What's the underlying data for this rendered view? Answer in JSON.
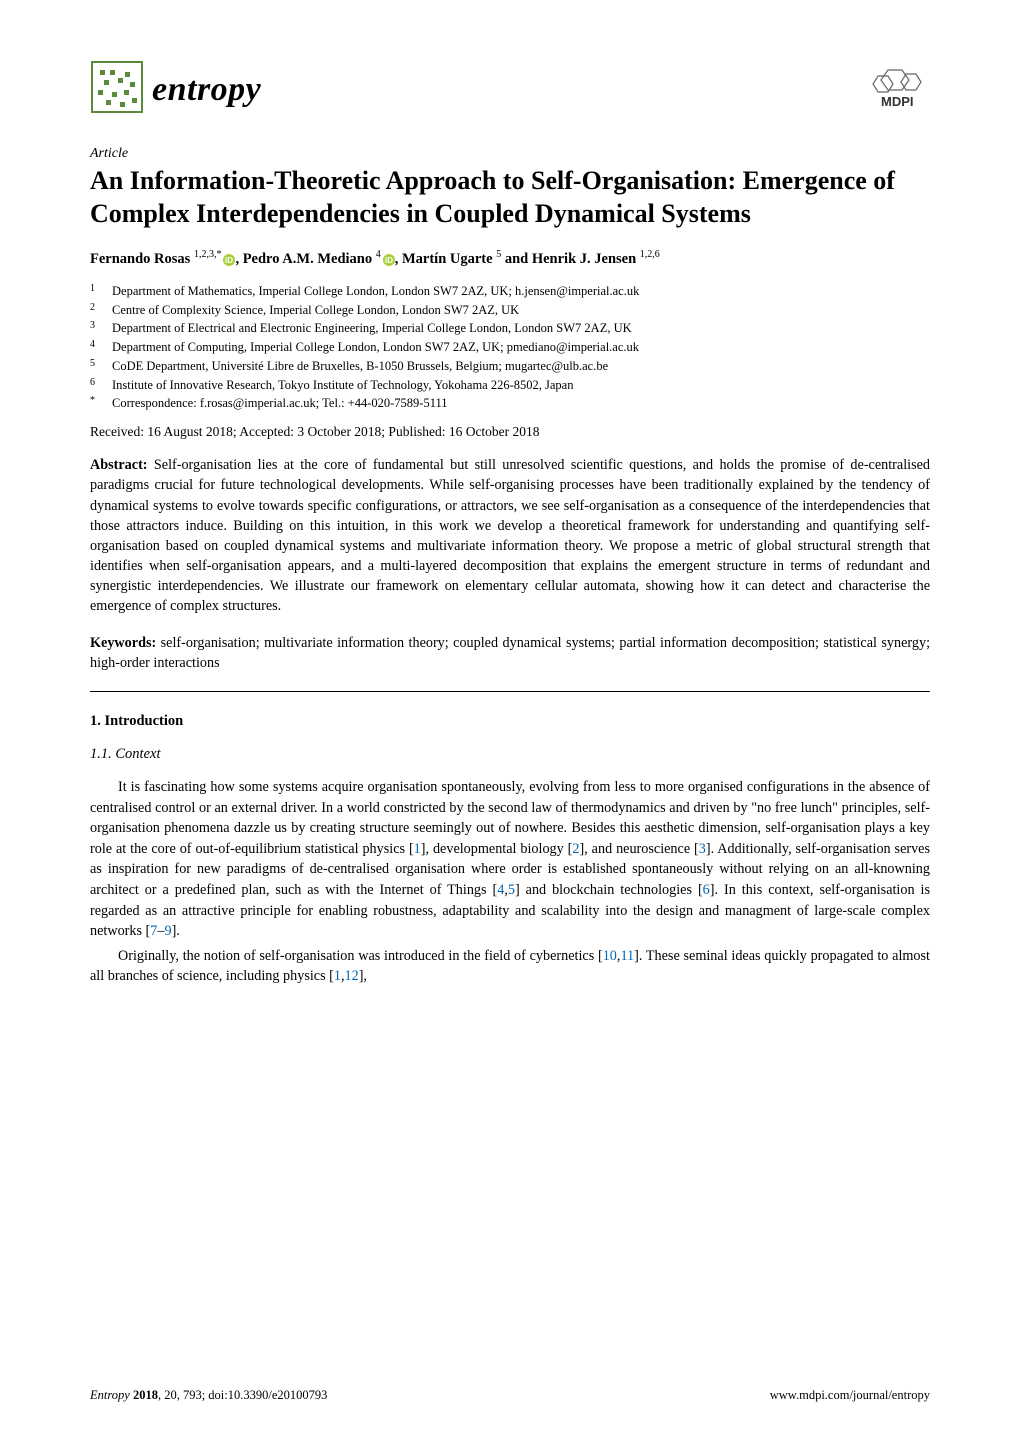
{
  "journal": {
    "logo_text": "entropy",
    "publisher_abbrev": "MDPI",
    "logo_color": "#5a8a3a",
    "publisher_color": "#333333"
  },
  "article_label": "Article",
  "title": "An Information-Theoretic Approach to Self-Organisation: Emergence of Complex Interdependencies in Coupled Dynamical Systems",
  "authors": [
    {
      "name": "Fernando Rosas",
      "marks": "1,2,3,",
      "star": true,
      "orcid": true,
      "trailing": ","
    },
    {
      "name": "Pedro A.M. Mediano",
      "marks": "4",
      "star": false,
      "orcid": true,
      "trailing": ","
    },
    {
      "name": "Martín Ugarte",
      "marks": "5",
      "star": false,
      "orcid": false,
      "trailing": " and"
    },
    {
      "name": "Henrik J. Jensen",
      "marks": "1,2,6",
      "star": false,
      "orcid": false,
      "trailing": ""
    }
  ],
  "affiliations": [
    {
      "num": "1",
      "text": "Department of Mathematics, Imperial College London, London SW7 2AZ, UK; h.jensen@imperial.ac.uk"
    },
    {
      "num": "2",
      "text": "Centre of Complexity Science, Imperial College London, London SW7 2AZ, UK"
    },
    {
      "num": "3",
      "text": "Department of Electrical and Electronic Engineering, Imperial College London, London SW7 2AZ, UK"
    },
    {
      "num": "4",
      "text": "Department of Computing, Imperial College London, London SW7 2AZ, UK; pmediano@imperial.ac.uk"
    },
    {
      "num": "5",
      "text": "CoDE Department, Université Libre de Bruxelles, B-1050 Brussels, Belgium; mugartec@ulb.ac.be"
    },
    {
      "num": "6",
      "text": "Institute of Innovative Research, Tokyo Institute of Technology, Yokohama 226-8502, Japan"
    },
    {
      "num": "*",
      "text": "Correspondence: f.rosas@imperial.ac.uk; Tel.: +44-020-7589-5111"
    }
  ],
  "dates": "Received: 16 August 2018; Accepted: 3 October 2018; Published: 16 October 2018",
  "abstract": {
    "label": "Abstract:",
    "text": "Self-organisation lies at the core of fundamental but still unresolved scientific questions, and holds the promise of de-centralised paradigms crucial for future technological developments. While self-organising processes have been traditionally explained by the tendency of dynamical systems to evolve towards specific configurations, or attractors, we see self-organisation as a consequence of the interdependencies that those attractors induce. Building on this intuition, in this work we develop a theoretical framework for understanding and quantifying self-organisation based on coupled dynamical systems and multivariate information theory. We propose a metric of global structural strength that identifies when self-organisation appears, and a multi-layered decomposition that explains the emergent structure in terms of redundant and synergistic interdependencies. We illustrate our framework on elementary cellular automata, showing how it can detect and characterise the emergence of complex structures."
  },
  "keywords": {
    "label": "Keywords:",
    "text": "self-organisation; multivariate information theory; coupled dynamical systems; partial information decomposition; statistical synergy; high-order interactions"
  },
  "sections": {
    "s1": "1. Introduction",
    "s1_1": "1.1. Context"
  },
  "body": {
    "p1_pre": "It is fascinating how some systems acquire organisation spontaneously, evolving from less to more organised configurations in the absence of centralised control or an external driver. In a world constricted by the second law of thermodynamics and driven by \"no free lunch\" principles, self-organisation phenomena dazzle us by creating structure seemingly out of nowhere. Besides this aesthetic dimension, self-organisation plays a key role at the core of out-of-equilibrium statistical physics [",
    "p1_c1": "1",
    "p1_m1": "], developmental biology [",
    "p1_c2": "2",
    "p1_m2": "], and neuroscience [",
    "p1_c3": "3",
    "p1_m3": "]. Additionally, self-organisation serves as inspiration for new paradigms of de-centralised organisation where order is established spontaneously without relying on an all-knowning architect or a predefined plan, such as with the Internet of Things [",
    "p1_c4": "4",
    "p1_m4": ",",
    "p1_c5": "5",
    "p1_m5": "] and blockchain technologies [",
    "p1_c6": "6",
    "p1_m6": "]. In this context, self-organisation is regarded as an attractive principle for enabling robustness, adaptability and scalability into the design and managment of large-scale complex networks [",
    "p1_c7": "7",
    "p1_m7": "–",
    "p1_c8": "9",
    "p1_m8": "].",
    "p2_pre": "Originally, the notion of self-organisation was introduced in the field of cybernetics [",
    "p2_c1": "10",
    "p2_m1": ",",
    "p2_c2": "11",
    "p2_m2": "]. These seminal ideas quickly propagated to almost all branches of science, including physics [",
    "p2_c3": "1",
    "p2_m3": ",",
    "p2_c4": "12",
    "p2_m4": "],"
  },
  "footer": {
    "journal": "Entropy",
    "year": "2018",
    "vol_page": ", 20, 793; doi:10.3390/e20100793",
    "url": "www.mdpi.com/journal/entropy"
  },
  "colors": {
    "citation": "#0066b3",
    "orcid": "#a6ce39"
  }
}
